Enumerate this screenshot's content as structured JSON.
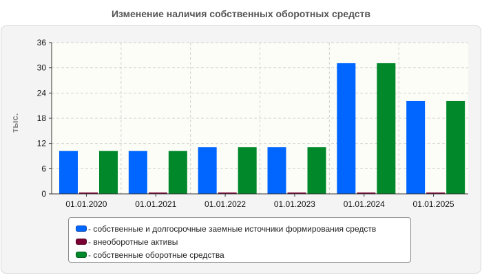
{
  "chart_data": {
    "type": "bar",
    "title": "Изменение наличия собственных оборотных средств",
    "ylabel": "тыс.",
    "categories": [
      "01.01.2020",
      "01.01.2021",
      "01.01.2022",
      "01.01.2023",
      "01.01.2024",
      "01.01.2025"
    ],
    "series": [
      {
        "name": "- собственные и долгосрочные заемные источники формирования средств",
        "color": "#0066ff",
        "values": [
          10.2,
          10.2,
          11.1,
          11.1,
          31.1,
          22.1
        ]
      },
      {
        "name": "- внеоборотные активы",
        "color": "#7a0033",
        "values": [
          0.2,
          0.2,
          0.2,
          0.2,
          0.2,
          0.2
        ]
      },
      {
        "name": "- собственные оборотные средства",
        "color": "#00882b",
        "values": [
          10.2,
          10.2,
          11.1,
          11.1,
          31.1,
          22.1
        ]
      }
    ],
    "ylim": [
      0,
      36
    ],
    "yticks": [
      "0",
      "6",
      "12",
      "18",
      "24",
      "30",
      "36"
    ],
    "grid": true,
    "legend_position": "bottom"
  }
}
